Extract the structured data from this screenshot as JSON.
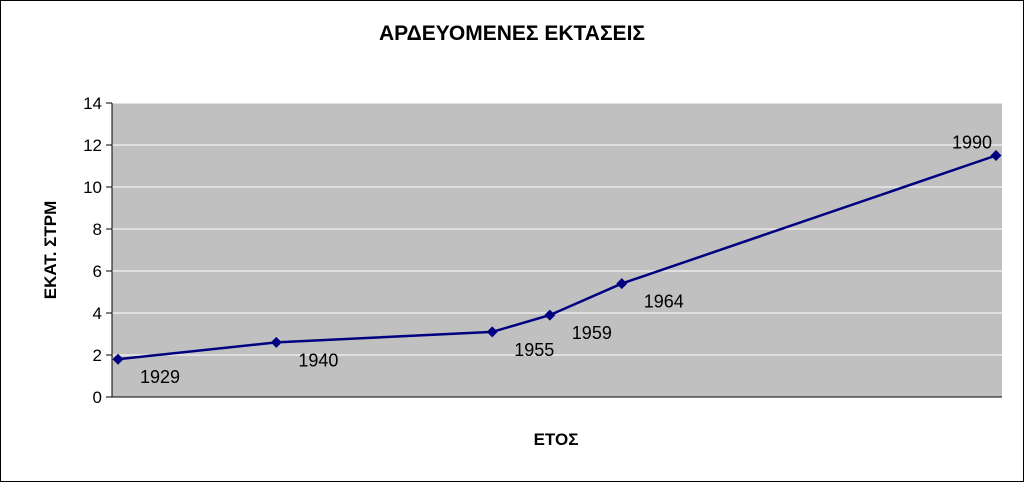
{
  "chart_data": {
    "type": "line",
    "title": "ΑΡΔΕΥΟΜΕΝΕΣ ΕΚΤΑΣΕΙΣ",
    "xlabel": "ΕΤΟΣ",
    "ylabel": "ΕΚΑΤ. ΣΤΡΜ",
    "x": [
      1929,
      1940,
      1955,
      1959,
      1964,
      1990
    ],
    "y": [
      1.8,
      2.6,
      3.1,
      3.9,
      5.4,
      11.5
    ],
    "point_labels": [
      "1929",
      "1940",
      "1955",
      "1959",
      "1964",
      "1990"
    ],
    "xlim": [
      1929,
      1990
    ],
    "ylim": [
      0,
      14
    ],
    "yticks": [
      "0",
      "2",
      "4",
      "6",
      "8",
      "10",
      "12",
      "14"
    ],
    "grid": "horizontal",
    "legend": "none",
    "colors": {
      "line": "#000080",
      "plot_area": "#c0c0c0",
      "gridline": "#ffffff"
    }
  }
}
